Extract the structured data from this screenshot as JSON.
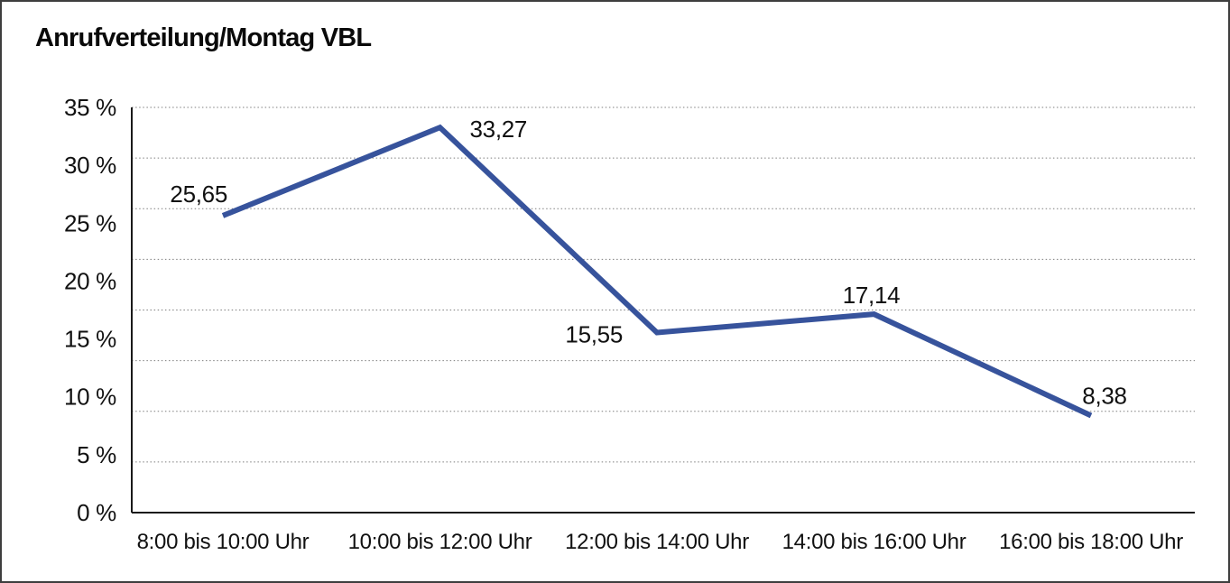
{
  "title": "Anrufverteilung/Montag VBL",
  "chart_data": {
    "type": "line",
    "title": "Anrufverteilung/Montag VBL",
    "categories": [
      "8:00 bis 10:00 Uhr",
      "10:00 bis 12:00 Uhr",
      "12:00 bis 14:00 Uhr",
      "14:00 bis 16:00 Uhr",
      "16:00 bis 18:00 Uhr"
    ],
    "series": [
      {
        "name": "Anrufverteilung Montag VBL",
        "values": [
          25.65,
          33.27,
          15.55,
          17.14,
          8.38
        ]
      }
    ],
    "value_labels": [
      "25,65",
      "33,27",
      "15,55",
      "17,14",
      "8,38"
    ],
    "y_tick_labels": [
      "35 %",
      "30 %",
      "25 %",
      "20 %",
      "15 %",
      "10 %",
      "5 %",
      "0 %"
    ],
    "xlabel": "",
    "ylabel": "",
    "ylim": [
      0,
      35
    ],
    "grid": "horizontal-dotted",
    "legend": "none",
    "line_color": "#37539c",
    "axis_color": "#1a1a1a",
    "text_color": "#111111"
  }
}
